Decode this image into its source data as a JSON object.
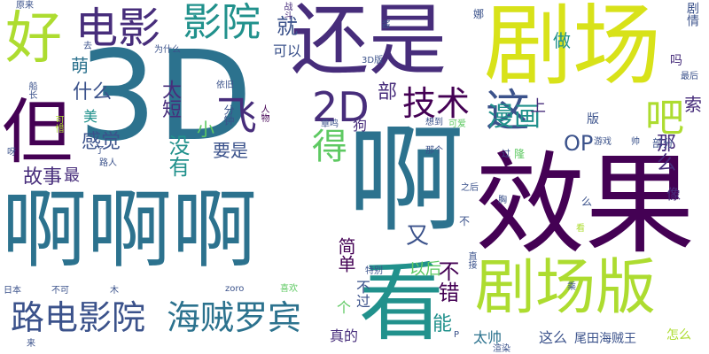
{
  "colors": {
    "background": "#ffffff",
    "palette": [
      "#440154",
      "#472d7b",
      "#3b528b",
      "#2c728e",
      "#21918c",
      "#28ae80",
      "#5ec962",
      "#addc30",
      "#fde725"
    ]
  },
  "words": [
    {
      "text": "3D"
    },
    {
      "text": "还是"
    },
    {
      "text": "剧场"
    },
    {
      "text": "啊啊啊"
    },
    {
      "text": "啊"
    },
    {
      "text": "效果"
    },
    {
      "text": "剧场版"
    },
    {
      "text": "看"
    },
    {
      "text": "好"
    },
    {
      "text": "但"
    },
    {
      "text": "电影"
    },
    {
      "text": "影院"
    },
    {
      "text": "2D"
    },
    {
      "text": "技术"
    },
    {
      "text": "这"
    },
    {
      "text": "吧"
    },
    {
      "text": "漫画"
    },
    {
      "text": "路电影院"
    },
    {
      "text": "海贼罗宾"
    },
    {
      "text": "飞"
    },
    {
      "text": "得"
    },
    {
      "text": "就"
    },
    {
      "text": "可以"
    },
    {
      "text": "故事"
    },
    {
      "text": "感觉"
    },
    {
      "text": "没有"
    },
    {
      "text": "太短"
    },
    {
      "text": "小"
    },
    {
      "text": "要是"
    },
    {
      "text": "萌"
    },
    {
      "text": "什么"
    },
    {
      "text": "美"
    },
    {
      "text": "部"
    },
    {
      "text": "上"
    },
    {
      "text": "OP"
    },
    {
      "text": "那么"
    },
    {
      "text": "做"
    },
    {
      "text": "索"
    },
    {
      "text": "像"
    },
    {
      "text": "不错"
    },
    {
      "text": "又"
    },
    {
      "text": "以后"
    },
    {
      "text": "能"
    },
    {
      "text": "简单"
    },
    {
      "text": "个"
    },
    {
      "text": "不过"
    },
    {
      "text": "真的"
    },
    {
      "text": "太帅"
    },
    {
      "text": "这么"
    },
    {
      "text": "尾田海贼王"
    },
    {
      "text": "怎么"
    },
    {
      "text": "吗"
    },
    {
      "text": "最"
    },
    {
      "text": "狗"
    },
    {
      "text": "分钟"
    },
    {
      "text": "依旧"
    },
    {
      "text": "人物"
    },
    {
      "text": "章鸣"
    },
    {
      "text": "想到"
    },
    {
      "text": "可爱"
    },
    {
      "text": "游戏"
    },
    {
      "text": "帅"
    },
    {
      "text": "部分"
    },
    {
      "text": "版"
    },
    {
      "text": "原来"
    },
    {
      "text": "战斗"
    },
    {
      "text": "为什么"
    },
    {
      "text": "去"
    },
    {
      "text": "船长"
    },
    {
      "text": "可惜"
    },
    {
      "text": "日本"
    },
    {
      "text": "不可"
    },
    {
      "text": "木"
    },
    {
      "text": "zoro"
    },
    {
      "text": "喜欢"
    },
    {
      "text": "特别"
    },
    {
      "text": "直接"
    },
    {
      "text": "3D版"
    },
    {
      "text": "那个"
    },
    {
      "text": "之后"
    },
    {
      "text": "隆"
    },
    {
      "text": "胸"
    },
    {
      "text": "看"
    },
    {
      "text": "娜"
    },
    {
      "text": "酱"
    },
    {
      "text": "剧情"
    },
    {
      "text": "最后"
    },
    {
      "text": "过"
    },
    {
      "text": "不"
    },
    {
      "text": "么"
    },
    {
      "text": "P"
    },
    {
      "text": "渲染"
    },
    {
      "text": "了"
    },
    {
      "text": "路人"
    },
    {
      "text": "呀"
    },
    {
      "text": "乘"
    },
    {
      "text": "来"
    }
  ]
}
